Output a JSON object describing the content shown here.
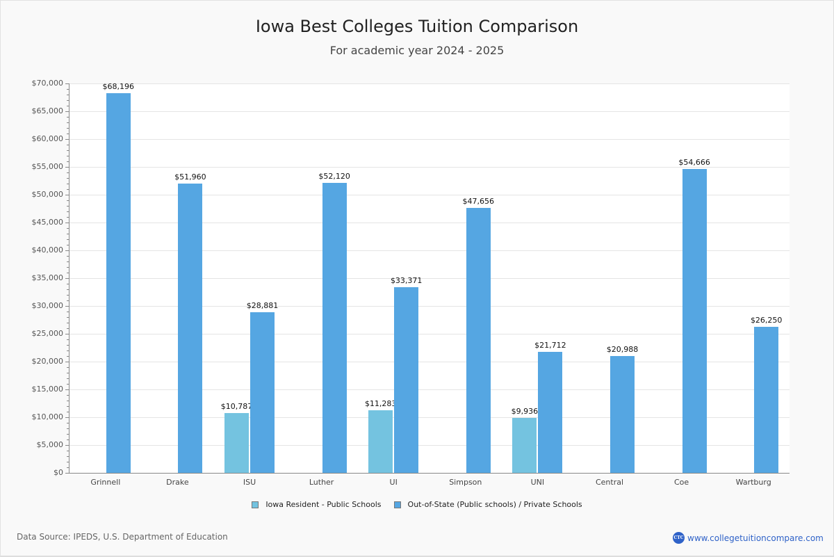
{
  "header": {
    "title": "Iowa Best Colleges Tuition Comparison",
    "subtitle": "For academic year 2024 - 2025"
  },
  "footer": {
    "source": "Data Source: IPEDS, U.S. Department of Education",
    "brand_logo": "CTC",
    "brand_url": "www.collegetuitioncompare.com"
  },
  "legend": [
    {
      "label": "Iowa Resident - Public Schools",
      "color": "#74c3e0"
    },
    {
      "label": "Out-of-State (Public schools) / Private Schools",
      "color": "#55a6e2"
    }
  ],
  "yaxis": {
    "ticks": [
      "$0",
      "$5,000",
      "$10,000",
      "$15,000",
      "$20,000",
      "$25,000",
      "$30,000",
      "$35,000",
      "$40,000",
      "$45,000",
      "$50,000",
      "$55,000",
      "$60,000",
      "$65,000",
      "$70,000"
    ]
  },
  "chart_data": {
    "type": "bar",
    "title": "Iowa Best Colleges Tuition Comparison",
    "subtitle": "For academic year 2024 - 2025",
    "xlabel": "",
    "ylabel": "",
    "ylim": [
      0,
      70000
    ],
    "grid": true,
    "legend_position": "bottom",
    "categories": [
      "Grinnell",
      "Drake",
      "ISU",
      "Luther",
      "UI",
      "Simpson",
      "UNI",
      "Central",
      "Coe",
      "Wartburg"
    ],
    "series": [
      {
        "name": "Iowa Resident - Public Schools",
        "color": "#74c3e0",
        "values": [
          null,
          null,
          10787,
          null,
          11283,
          null,
          9936,
          null,
          null,
          null
        ],
        "labels": [
          null,
          null,
          "$10,787",
          null,
          "$11,283",
          null,
          "$9,936",
          null,
          null,
          null
        ]
      },
      {
        "name": "Out-of-State (Public schools) / Private Schools",
        "color": "#55a6e2",
        "values": [
          68196,
          51960,
          28881,
          52120,
          33371,
          47656,
          21712,
          20988,
          54666,
          26250
        ],
        "labels": [
          "$68,196",
          "$51,960",
          "$28,881",
          "$52,120",
          "$33,371",
          "$47,656",
          "$21,712",
          "$20,988",
          "$54,666",
          "$26,250"
        ]
      }
    ]
  }
}
